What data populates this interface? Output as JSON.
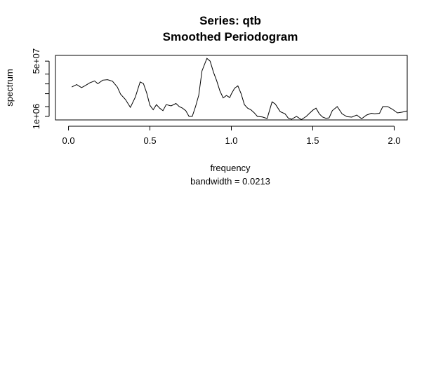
{
  "chart_data": {
    "type": "line",
    "title": "Series: qtb",
    "subtitle": "Smoothed Periodogram",
    "xlabel": "frequency",
    "sub_xlabel": "bandwidth = 0.0213",
    "ylabel": "spectrum",
    "log_y": true,
    "xlim": [
      -0.08,
      2.08
    ],
    "ylim": [
      780000,
      75000000
    ],
    "x_ticks": [
      0.0,
      0.5,
      1.0,
      1.5,
      2.0
    ],
    "x_tick_labels": [
      "0.0",
      "0.5",
      "1.0",
      "1.5",
      "2.0"
    ],
    "y_ticks_labeled": [
      1000000,
      50000000
    ],
    "y_tick_labels": [
      "1e+06",
      "5e+07"
    ],
    "y_ticks_minor": [
      2000000,
      5000000,
      10000000,
      20000000
    ],
    "grid": false,
    "series": [
      {
        "color": "#000000",
        "x": [
          0.02,
          0.05,
          0.08,
          0.1,
          0.13,
          0.16,
          0.18,
          0.21,
          0.24,
          0.27,
          0.3,
          0.32,
          0.35,
          0.38,
          0.41,
          0.44,
          0.46,
          0.48,
          0.5,
          0.52,
          0.54,
          0.56,
          0.58,
          0.6,
          0.63,
          0.66,
          0.68,
          0.7,
          0.72,
          0.74,
          0.76,
          0.78,
          0.8,
          0.82,
          0.85,
          0.87,
          0.89,
          0.91,
          0.93,
          0.95,
          0.97,
          0.99,
          1.0,
          1.02,
          1.04,
          1.06,
          1.08,
          1.1,
          1.12,
          1.14,
          1.16,
          1.19,
          1.22,
          1.25,
          1.27,
          1.3,
          1.33,
          1.35,
          1.37,
          1.4,
          1.43,
          1.46,
          1.48,
          1.5,
          1.52,
          1.54,
          1.56,
          1.58,
          1.6,
          1.62,
          1.65,
          1.68,
          1.71,
          1.74,
          1.77,
          1.8,
          1.83,
          1.86,
          1.88,
          1.91,
          1.93,
          1.96,
          1.99,
          2.02,
          2.05,
          2.08
        ],
        "y": [
          8000000,
          9500000,
          7700000,
          8700000,
          10700000,
          12300000,
          10100000,
          13000000,
          13500000,
          12100000,
          8000000,
          4800000,
          3300000,
          1900000,
          3900000,
          11500000,
          10200000,
          5300000,
          2200000,
          1600000,
          2300000,
          1800000,
          1500000,
          2300000,
          2100000,
          2500000,
          2000000,
          1800000,
          1500000,
          1000000,
          1000000,
          2000000,
          4500000,
          25000000,
          61000000,
          50000000,
          23000000,
          12500000,
          6000000,
          3700000,
          4400000,
          3800000,
          4900000,
          7300000,
          8700000,
          5000000,
          2300000,
          1800000,
          1600000,
          1300000,
          1000000,
          960000,
          860000,
          2800000,
          2400000,
          1400000,
          1200000,
          880000,
          820000,
          1000000,
          800000,
          1000000,
          1250000,
          1550000,
          1800000,
          1200000,
          960000,
          880000,
          900000,
          1500000,
          2000000,
          1200000,
          980000,
          950000,
          1100000,
          850000,
          1100000,
          1250000,
          1200000,
          1250000,
          2000000,
          2000000,
          1650000,
          1280000,
          1350000,
          1480000
        ]
      }
    ]
  }
}
